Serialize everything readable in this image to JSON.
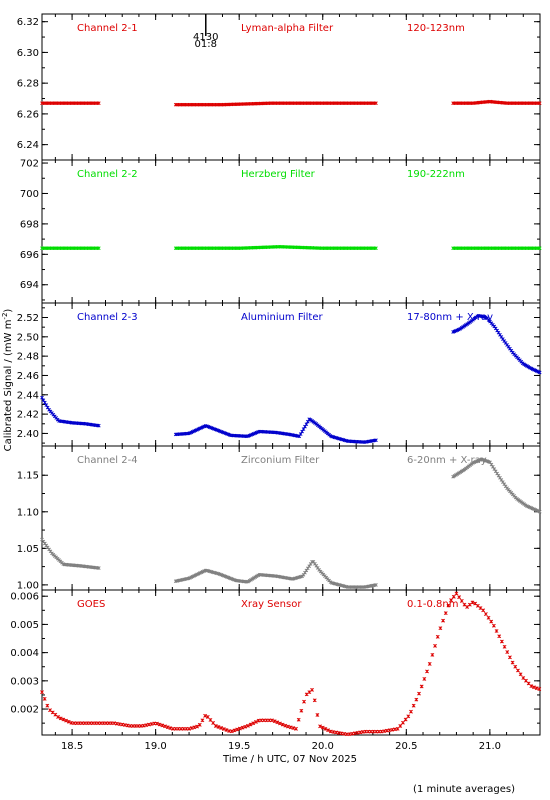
{
  "figure": {
    "ylabel_html": "Calibrated Signal / (mW m",
    "ylabel_sup": "-2",
    "ylabel_tail": ")",
    "xlabel": "Time / h UTC, 07 Nov 2025",
    "footnote": "(1 minute averages)"
  },
  "chart_data": [
    {
      "type": "scatter",
      "name": "Channel 2-1",
      "filter": "Lyman-alpha Filter",
      "band": "120-123nm",
      "color": "#dd0000",
      "xlim": [
        18.32,
        21.3
      ],
      "ylim": [
        6.23,
        6.325
      ],
      "yticks": [
        6.24,
        6.26,
        6.28,
        6.3,
        6.32
      ],
      "ytick_labels": [
        "6.24",
        "6.26",
        "6.28",
        "6.30",
        "6.32"
      ],
      "marker": {
        "x": 19.3,
        "label1": "4130",
        "label2": "01:8"
      },
      "segments": [
        {
          "x": [
            18.32,
            18.45,
            18.58,
            18.66
          ],
          "y": [
            6.267,
            6.267,
            6.267,
            6.267
          ]
        },
        {
          "x": [
            19.12,
            19.4,
            19.7,
            20.0,
            20.32
          ],
          "y": [
            6.266,
            6.266,
            6.267,
            6.267,
            6.267
          ]
        },
        {
          "x": [
            20.78,
            20.9,
            21.0,
            21.1,
            21.3
          ],
          "y": [
            6.267,
            6.267,
            6.268,
            6.267,
            6.267
          ]
        }
      ]
    },
    {
      "type": "scatter",
      "name": "Channel 2-2",
      "filter": "Herzberg Filter",
      "band": "190-222nm",
      "color": "#00dd00",
      "xlim": [
        18.32,
        21.3
      ],
      "ylim": [
        692.8,
        702.2
      ],
      "yticks": [
        694,
        696,
        698,
        700,
        702
      ],
      "ytick_labels": [
        "694",
        "696",
        "698",
        "700",
        "702"
      ],
      "segments": [
        {
          "x": [
            18.32,
            18.5,
            18.66
          ],
          "y": [
            696.4,
            696.4,
            696.4
          ]
        },
        {
          "x": [
            19.12,
            19.5,
            19.74,
            20.0,
            20.32
          ],
          "y": [
            696.4,
            696.4,
            696.5,
            696.4,
            696.4
          ]
        },
        {
          "x": [
            20.78,
            21.0,
            21.3
          ],
          "y": [
            696.4,
            696.4,
            696.4
          ]
        }
      ]
    },
    {
      "type": "scatter",
      "name": "Channel 2-3",
      "filter": "Aluminium Filter",
      "band": "17-80nm + X-ray",
      "color": "#0000cc",
      "xlim": [
        18.32,
        21.3
      ],
      "ylim": [
        2.387,
        2.535
      ],
      "yticks": [
        2.4,
        2.42,
        2.44,
        2.46,
        2.48,
        2.5,
        2.52
      ],
      "ytick_labels": [
        "2.40",
        "2.42",
        "2.44",
        "2.46",
        "2.48",
        "2.50",
        "2.52"
      ],
      "segments": [
        {
          "x": [
            18.32,
            18.36,
            18.42,
            18.5,
            18.58,
            18.66
          ],
          "y": [
            2.437,
            2.425,
            2.413,
            2.411,
            2.41,
            2.408
          ]
        },
        {
          "x": [
            19.12,
            19.2,
            19.3,
            19.36,
            19.45,
            19.55,
            19.62,
            19.72,
            19.8,
            19.86,
            19.92,
            19.96,
            20.05,
            20.15,
            20.25,
            20.32
          ],
          "y": [
            2.399,
            2.4,
            2.408,
            2.404,
            2.398,
            2.397,
            2.402,
            2.401,
            2.399,
            2.397,
            2.415,
            2.41,
            2.397,
            2.392,
            2.391,
            2.393
          ]
        },
        {
          "x": [
            20.78,
            20.82,
            20.88,
            20.93,
            20.98,
            21.03,
            21.08,
            21.14,
            21.2,
            21.25,
            21.3
          ],
          "y": [
            2.505,
            2.508,
            2.515,
            2.522,
            2.52,
            2.51,
            2.497,
            2.483,
            2.472,
            2.467,
            2.463
          ]
        }
      ]
    },
    {
      "type": "scatter",
      "name": "Channel 2-4",
      "filter": "Zirconium Filter",
      "band": "6-20nm + X-ray",
      "color": "#808080",
      "xlim": [
        18.32,
        21.3
      ],
      "ylim": [
        0.993,
        1.19
      ],
      "yticks": [
        1.0,
        1.05,
        1.1,
        1.15
      ],
      "ytick_labels": [
        "1.00",
        "1.05",
        "1.10",
        "1.15"
      ],
      "segments": [
        {
          "x": [
            18.32,
            18.38,
            18.45,
            18.55,
            18.66
          ],
          "y": [
            1.062,
            1.043,
            1.028,
            1.026,
            1.023
          ]
        },
        {
          "x": [
            19.12,
            19.2,
            19.3,
            19.38,
            19.48,
            19.55,
            19.62,
            19.72,
            19.82,
            19.88,
            19.94,
            19.98,
            20.05,
            20.15,
            20.25,
            20.32
          ],
          "y": [
            1.005,
            1.009,
            1.02,
            1.015,
            1.006,
            1.004,
            1.014,
            1.012,
            1.008,
            1.012,
            1.033,
            1.02,
            1.003,
            0.997,
            0.997,
            1.0
          ]
        },
        {
          "x": [
            20.78,
            20.85,
            20.9,
            20.95,
            21.0,
            21.05,
            21.1,
            21.16,
            21.22,
            21.3
          ],
          "y": [
            1.148,
            1.158,
            1.167,
            1.172,
            1.168,
            1.15,
            1.133,
            1.118,
            1.108,
            1.1
          ]
        }
      ]
    },
    {
      "type": "scatter",
      "name": "GOES",
      "filter": "Xray Sensor",
      "band": "0.1-0.8nm",
      "color": "#dd0000",
      "xlim": [
        18.32,
        21.3
      ],
      "ylim": [
        0.00108,
        0.00622
      ],
      "yticks": [
        0.002,
        0.003,
        0.004,
        0.005,
        0.006
      ],
      "ytick_labels": [
        "0.002",
        "0.003",
        "0.004",
        "0.005",
        "0.006"
      ],
      "segments": [
        {
          "x": [
            18.32,
            18.36,
            18.42,
            18.5,
            18.6,
            18.75,
            18.85,
            18.92,
            19.0,
            19.1,
            19.2,
            19.26,
            19.3,
            19.36,
            19.45,
            19.55,
            19.62,
            19.7,
            19.78,
            19.84,
            19.9,
            19.94,
            19.98,
            20.05,
            20.15,
            20.25,
            20.35,
            20.45,
            20.52,
            20.58,
            20.64,
            20.7,
            20.76,
            20.8,
            20.86,
            20.9,
            20.96,
            21.02,
            21.08,
            21.14,
            21.2,
            21.25,
            21.3
          ],
          "y": [
            0.0026,
            0.002,
            0.0017,
            0.0015,
            0.0015,
            0.0015,
            0.0014,
            0.0014,
            0.0015,
            0.0013,
            0.0013,
            0.0014,
            0.0018,
            0.0014,
            0.0012,
            0.0014,
            0.0016,
            0.0016,
            0.0014,
            0.0013,
            0.0025,
            0.0027,
            0.0014,
            0.0012,
            0.0011,
            0.0012,
            0.0012,
            0.0013,
            0.0018,
            0.0026,
            0.0036,
            0.0048,
            0.0058,
            0.0061,
            0.0056,
            0.0058,
            0.0055,
            0.005,
            0.0043,
            0.0036,
            0.0031,
            0.0028,
            0.0027
          ]
        }
      ]
    }
  ],
  "xaxis": {
    "ticks": [
      18.5,
      19.0,
      19.5,
      20.0,
      20.5,
      21.0
    ],
    "tick_labels": [
      "18.5",
      "19.0",
      "19.5",
      "20.0",
      "20.5",
      "21.0"
    ]
  }
}
